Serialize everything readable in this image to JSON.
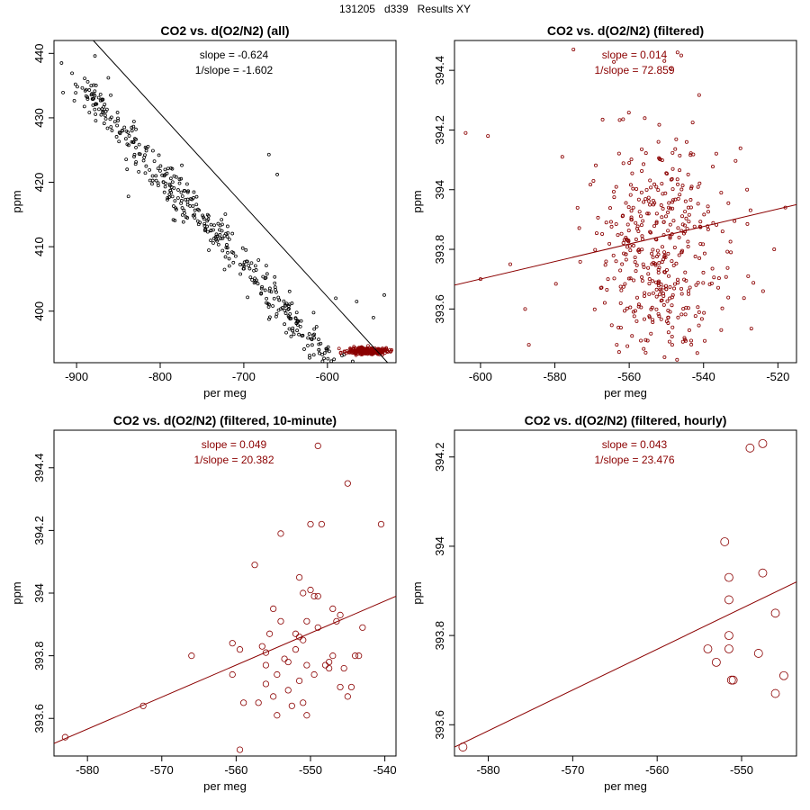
{
  "main_title": "131205   d339   Results XY",
  "colors": {
    "black": "#000000",
    "red": "#8b0000"
  },
  "chart_data": [
    {
      "type": "scatter",
      "title": "CO2 vs. d(O2/N2) (all)",
      "xlabel": "per meg",
      "ylabel": "ppm",
      "xlim": [
        -927,
        -518
      ],
      "ylim": [
        392,
        442
      ],
      "xticks": [
        -900,
        -800,
        -700,
        -600
      ],
      "yticks": [
        400,
        410,
        420,
        430,
        440
      ],
      "annotations": [
        "slope = -0.624",
        "1/slope = -1.602"
      ],
      "annotation_color": "black",
      "fit_line": {
        "slope": -0.624,
        "points": [
          [
            -880,
            442
          ],
          [
            -528,
            392
          ]
        ],
        "color": "black"
      },
      "series": [
        {
          "name": "all",
          "color": "black",
          "marker_size": 1.5,
          "trend": {
            "slope": -0.142,
            "x_from": -900,
            "x_to": -530,
            "y_at_x0": 435.5
          },
          "count": 500,
          "spread_x": 9,
          "spread_y": 1.2,
          "extra_points": [
            [
              -918,
              438.5
            ],
            [
              -878,
              439.6
            ],
            [
              -862,
              436.2
            ],
            [
              -838,
              417.8
            ],
            [
              -670,
              424.3
            ],
            [
              -660,
              421.2
            ],
            [
              -590,
              402.0
            ],
            [
              -532,
              402.5
            ],
            [
              -565,
              401.5
            ],
            [
              -545,
              399.0
            ]
          ]
        },
        {
          "name": "filtered",
          "color": "red",
          "marker_size": 1.5,
          "cluster": {
            "x_mean": -552,
            "x_sd": 12,
            "y_mean": 393.8,
            "y_sd": 0.28
          },
          "count": 320
        }
      ]
    },
    {
      "type": "scatter",
      "title": "CO2 vs. d(O2/N2) (filtered)",
      "xlabel": "per meg",
      "ylabel": "ppm",
      "xlim": [
        -607,
        -515
      ],
      "ylim": [
        393.42,
        394.5
      ],
      "xticks": [
        -600,
        -580,
        -560,
        -540,
        -520
      ],
      "yticks": [
        393.6,
        393.8,
        394.0,
        394.2,
        394.4
      ],
      "annotations": [
        "slope = 0.014",
        "1/slope = 72.859"
      ],
      "annotation_color": "red",
      "fit_line": {
        "slope": 0.014,
        "points": [
          [
            -607,
            393.68
          ],
          [
            -515,
            393.95
          ]
        ],
        "color": "red"
      },
      "series": [
        {
          "name": "filtered",
          "color": "red",
          "marker_size": 1.6,
          "cluster": {
            "x_mean": -552,
            "x_sd": 9,
            "y_mean": 393.82,
            "y_sd": 0.2
          },
          "count": 420,
          "extra_points": [
            [
              -604,
              394.19
            ],
            [
              -598,
              394.18
            ],
            [
              -600,
              393.7
            ],
            [
              -578,
              394.11
            ],
            [
              -575,
              394.47
            ],
            [
              -547,
              394.46
            ],
            [
              -546,
              394.45
            ],
            [
              -528,
              393.71
            ],
            [
              -524,
              393.66
            ],
            [
              -521,
              393.8
            ],
            [
              -518,
              393.94
            ],
            [
              -588,
              393.6
            ],
            [
              -587,
              393.48
            ],
            [
              -592,
              393.75
            ]
          ]
        }
      ]
    },
    {
      "type": "scatter",
      "title": "CO2 vs. d(O2/N2) (filtered, 10-minute)",
      "xlabel": "per meg",
      "ylabel": "ppm",
      "xlim": [
        -584.5,
        -538.5
      ],
      "ylim": [
        393.48,
        394.52
      ],
      "xticks": [
        -580,
        -570,
        -560,
        -550,
        -540
      ],
      "yticks": [
        393.6,
        393.8,
        394.0,
        394.2,
        394.4
      ],
      "annotations": [
        "slope = 0.049",
        "1/slope = 20.382"
      ],
      "annotation_color": "red",
      "fit_line": {
        "slope": 0.049,
        "points": [
          [
            -584.5,
            393.52
          ],
          [
            -538.5,
            393.99
          ]
        ],
        "color": "red"
      },
      "series": [
        {
          "name": "10-minute",
          "color": "red",
          "marker_size": 3.2,
          "points": [
            [
              -583,
              393.54
            ],
            [
              -572.5,
              393.64
            ],
            [
              -566,
              393.8
            ],
            [
              -560.5,
              393.74
            ],
            [
              -560.5,
              393.84
            ],
            [
              -559.5,
              393.82
            ],
            [
              -559.5,
              393.5
            ],
            [
              -559,
              393.65
            ],
            [
              -557.5,
              394.09
            ],
            [
              -557,
              393.65
            ],
            [
              -556.5,
              393.83
            ],
            [
              -556,
              393.81
            ],
            [
              -556,
              393.77
            ],
            [
              -556,
              393.71
            ],
            [
              -555.5,
              393.87
            ],
            [
              -555,
              393.95
            ],
            [
              -555,
              393.67
            ],
            [
              -554.5,
              393.61
            ],
            [
              -554.5,
              393.74
            ],
            [
              -554,
              393.91
            ],
            [
              -554,
              394.19
            ],
            [
              -553.5,
              393.79
            ],
            [
              -553,
              393.78
            ],
            [
              -553,
              393.69
            ],
            [
              -552.5,
              393.64
            ],
            [
              -552,
              393.82
            ],
            [
              -552,
              393.87
            ],
            [
              -551.5,
              393.86
            ],
            [
              -551.5,
              394.05
            ],
            [
              -551.5,
              393.72
            ],
            [
              -551,
              393.65
            ],
            [
              -551,
              393.85
            ],
            [
              -551,
              394.0
            ],
            [
              -550.5,
              393.77
            ],
            [
              -550.5,
              393.91
            ],
            [
              -550.5,
              393.61
            ],
            [
              -550,
              394.22
            ],
            [
              -550,
              394.01
            ],
            [
              -549.5,
              393.74
            ],
            [
              -549.5,
              393.99
            ],
            [
              -549,
              393.99
            ],
            [
              -549,
              394.47
            ],
            [
              -549,
              393.89
            ],
            [
              -548.5,
              394.22
            ],
            [
              -548,
              393.77
            ],
            [
              -547.5,
              393.76
            ],
            [
              -547.5,
              393.78
            ],
            [
              -547,
              393.8
            ],
            [
              -547,
              393.95
            ],
            [
              -546.5,
              393.91
            ],
            [
              -546,
              393.7
            ],
            [
              -546,
              393.93
            ],
            [
              -545.5,
              393.76
            ],
            [
              -545,
              394.35
            ],
            [
              -545,
              393.67
            ],
            [
              -544.5,
              393.7
            ],
            [
              -544,
              393.8
            ],
            [
              -543.5,
              393.8
            ],
            [
              -543,
              393.89
            ],
            [
              -540.5,
              394.22
            ]
          ]
        }
      ]
    },
    {
      "type": "scatter",
      "title": "CO2 vs. d(O2/N2) (filtered, hourly)",
      "xlabel": "per meg",
      "ylabel": "ppm",
      "xlim": [
        -584,
        -543.5
      ],
      "ylim": [
        393.53,
        394.26
      ],
      "xticks": [
        -580,
        -570,
        -560,
        -550
      ],
      "yticks": [
        393.6,
        393.8,
        394.0,
        394.2
      ],
      "annotations": [
        "slope = 0.043",
        "1/slope = 23.476"
      ],
      "annotation_color": "red",
      "fit_line": {
        "slope": 0.043,
        "points": [
          [
            -584,
            393.55
          ],
          [
            -543.5,
            393.92
          ]
        ],
        "color": "red"
      },
      "series": [
        {
          "name": "hourly",
          "color": "red",
          "marker_size": 4.5,
          "points": [
            [
              -583,
              393.55
            ],
            [
              -554,
              393.77
            ],
            [
              -553,
              393.74
            ],
            [
              -552,
              394.01
            ],
            [
              -551.5,
              393.8
            ],
            [
              -551.5,
              393.77
            ],
            [
              -551.5,
              393.88
            ],
            [
              -551.5,
              393.93
            ],
            [
              -551.2,
              393.7
            ],
            [
              -551,
              393.7
            ],
            [
              -549,
              394.22
            ],
            [
              -548,
              393.76
            ],
            [
              -547.5,
              393.94
            ],
            [
              -546,
              393.67
            ],
            [
              -546,
              393.85
            ],
            [
              -547.5,
              394.23
            ],
            [
              -545,
              393.71
            ]
          ]
        }
      ]
    }
  ]
}
